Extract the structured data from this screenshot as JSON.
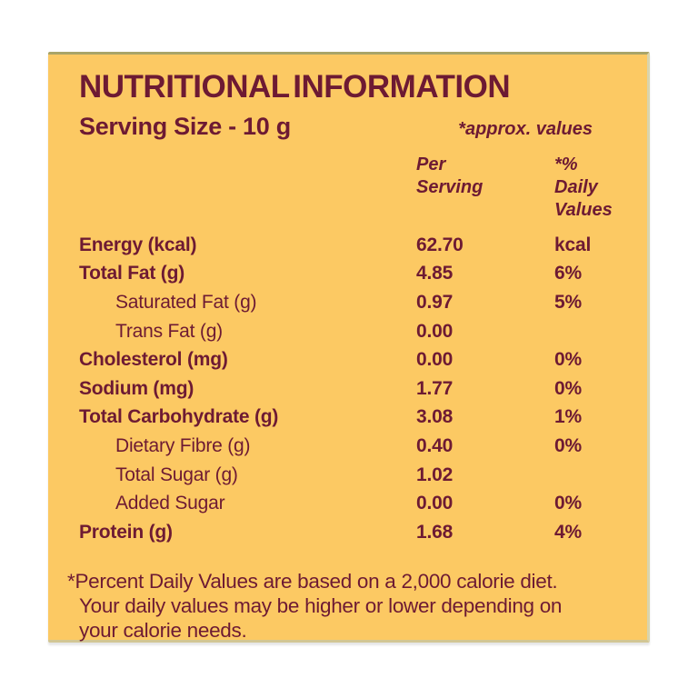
{
  "colors": {
    "page_background": "#ffffff",
    "card_background": "#FCC963",
    "text": "#6D1A33"
  },
  "card": {
    "title": "NUTRITIONAL INFORMATION",
    "serving_size": "Serving Size - 10 g",
    "approx_note": "*approx. values"
  },
  "table": {
    "headers": {
      "per_serving": "Per\nServing",
      "daily_values": "*% Daily\nValues"
    },
    "rows": [
      {
        "label": "Energy (kcal)",
        "per_serving": "62.70",
        "daily_value": "kcal"
      },
      {
        "label": "Total Fat (g)",
        "per_serving": "4.85",
        "daily_value": "6%"
      },
      {
        "label": "Saturated Fat (g)",
        "per_serving": "0.97",
        "daily_value": "5%"
      },
      {
        "label": "Trans Fat (g)",
        "per_serving": "0.00",
        "daily_value": ""
      },
      {
        "label": "Cholesterol (mg)",
        "per_serving": "0.00",
        "daily_value": "0%"
      },
      {
        "label": "Sodium (mg)",
        "per_serving": "1.77",
        "daily_value": "0%"
      },
      {
        "label": "Total Carbohydrate (g)",
        "per_serving": "3.08",
        "daily_value": "1%"
      },
      {
        "label": "Dietary Fibre (g)",
        "per_serving": "0.40",
        "daily_value": "0%"
      },
      {
        "label": "Total Sugar (g)",
        "per_serving": "1.02",
        "daily_value": ""
      },
      {
        "label": "Added Sugar",
        "per_serving": "0.00",
        "daily_value": "0%"
      },
      {
        "label": "Protein (g)",
        "per_serving": "1.68",
        "daily_value": "4%"
      }
    ]
  },
  "footnote": {
    "text": "*Percent Daily Values are based on a 2,000 calorie diet.\nYour daily values may be higher or lower depending on\nyour calorie needs."
  }
}
